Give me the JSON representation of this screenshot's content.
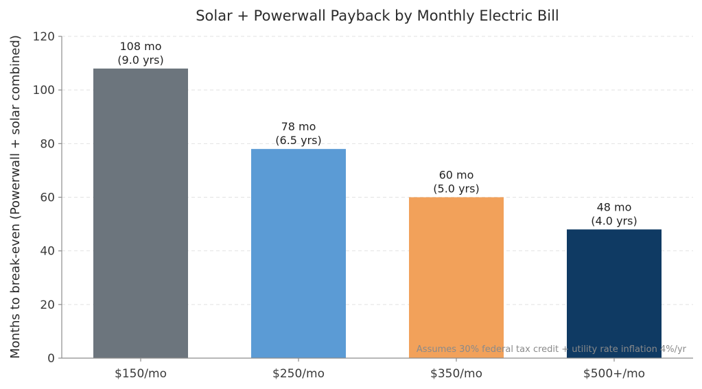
{
  "chart_data": {
    "type": "bar",
    "title": "Solar + Powerwall Payback by Monthly Electric Bill",
    "xlabel": "",
    "ylabel": "Months to break-even (Powerwall + solar combined)",
    "categories": [
      "$150/mo",
      "$250/mo",
      "$350/mo",
      "$500+/mo"
    ],
    "values": [
      108,
      78,
      60,
      48
    ],
    "data_labels": [
      [
        "108 mo",
        "(9.0 yrs)"
      ],
      [
        "78 mo",
        "(6.5 yrs)"
      ],
      [
        "60 mo",
        "(5.0 yrs)"
      ],
      [
        "48 mo",
        "(4.0 yrs)"
      ]
    ],
    "colors": [
      "#6c757d",
      "#5b9bd5",
      "#f2a15a",
      "#0f3a63"
    ],
    "ylim": [
      0,
      120
    ],
    "yticks": [
      0,
      20,
      40,
      60,
      80,
      100,
      120
    ],
    "grid": true,
    "legend": "none",
    "annotation": "Assumes 30% federal tax credit + utility rate inflation 4%/yr"
  }
}
